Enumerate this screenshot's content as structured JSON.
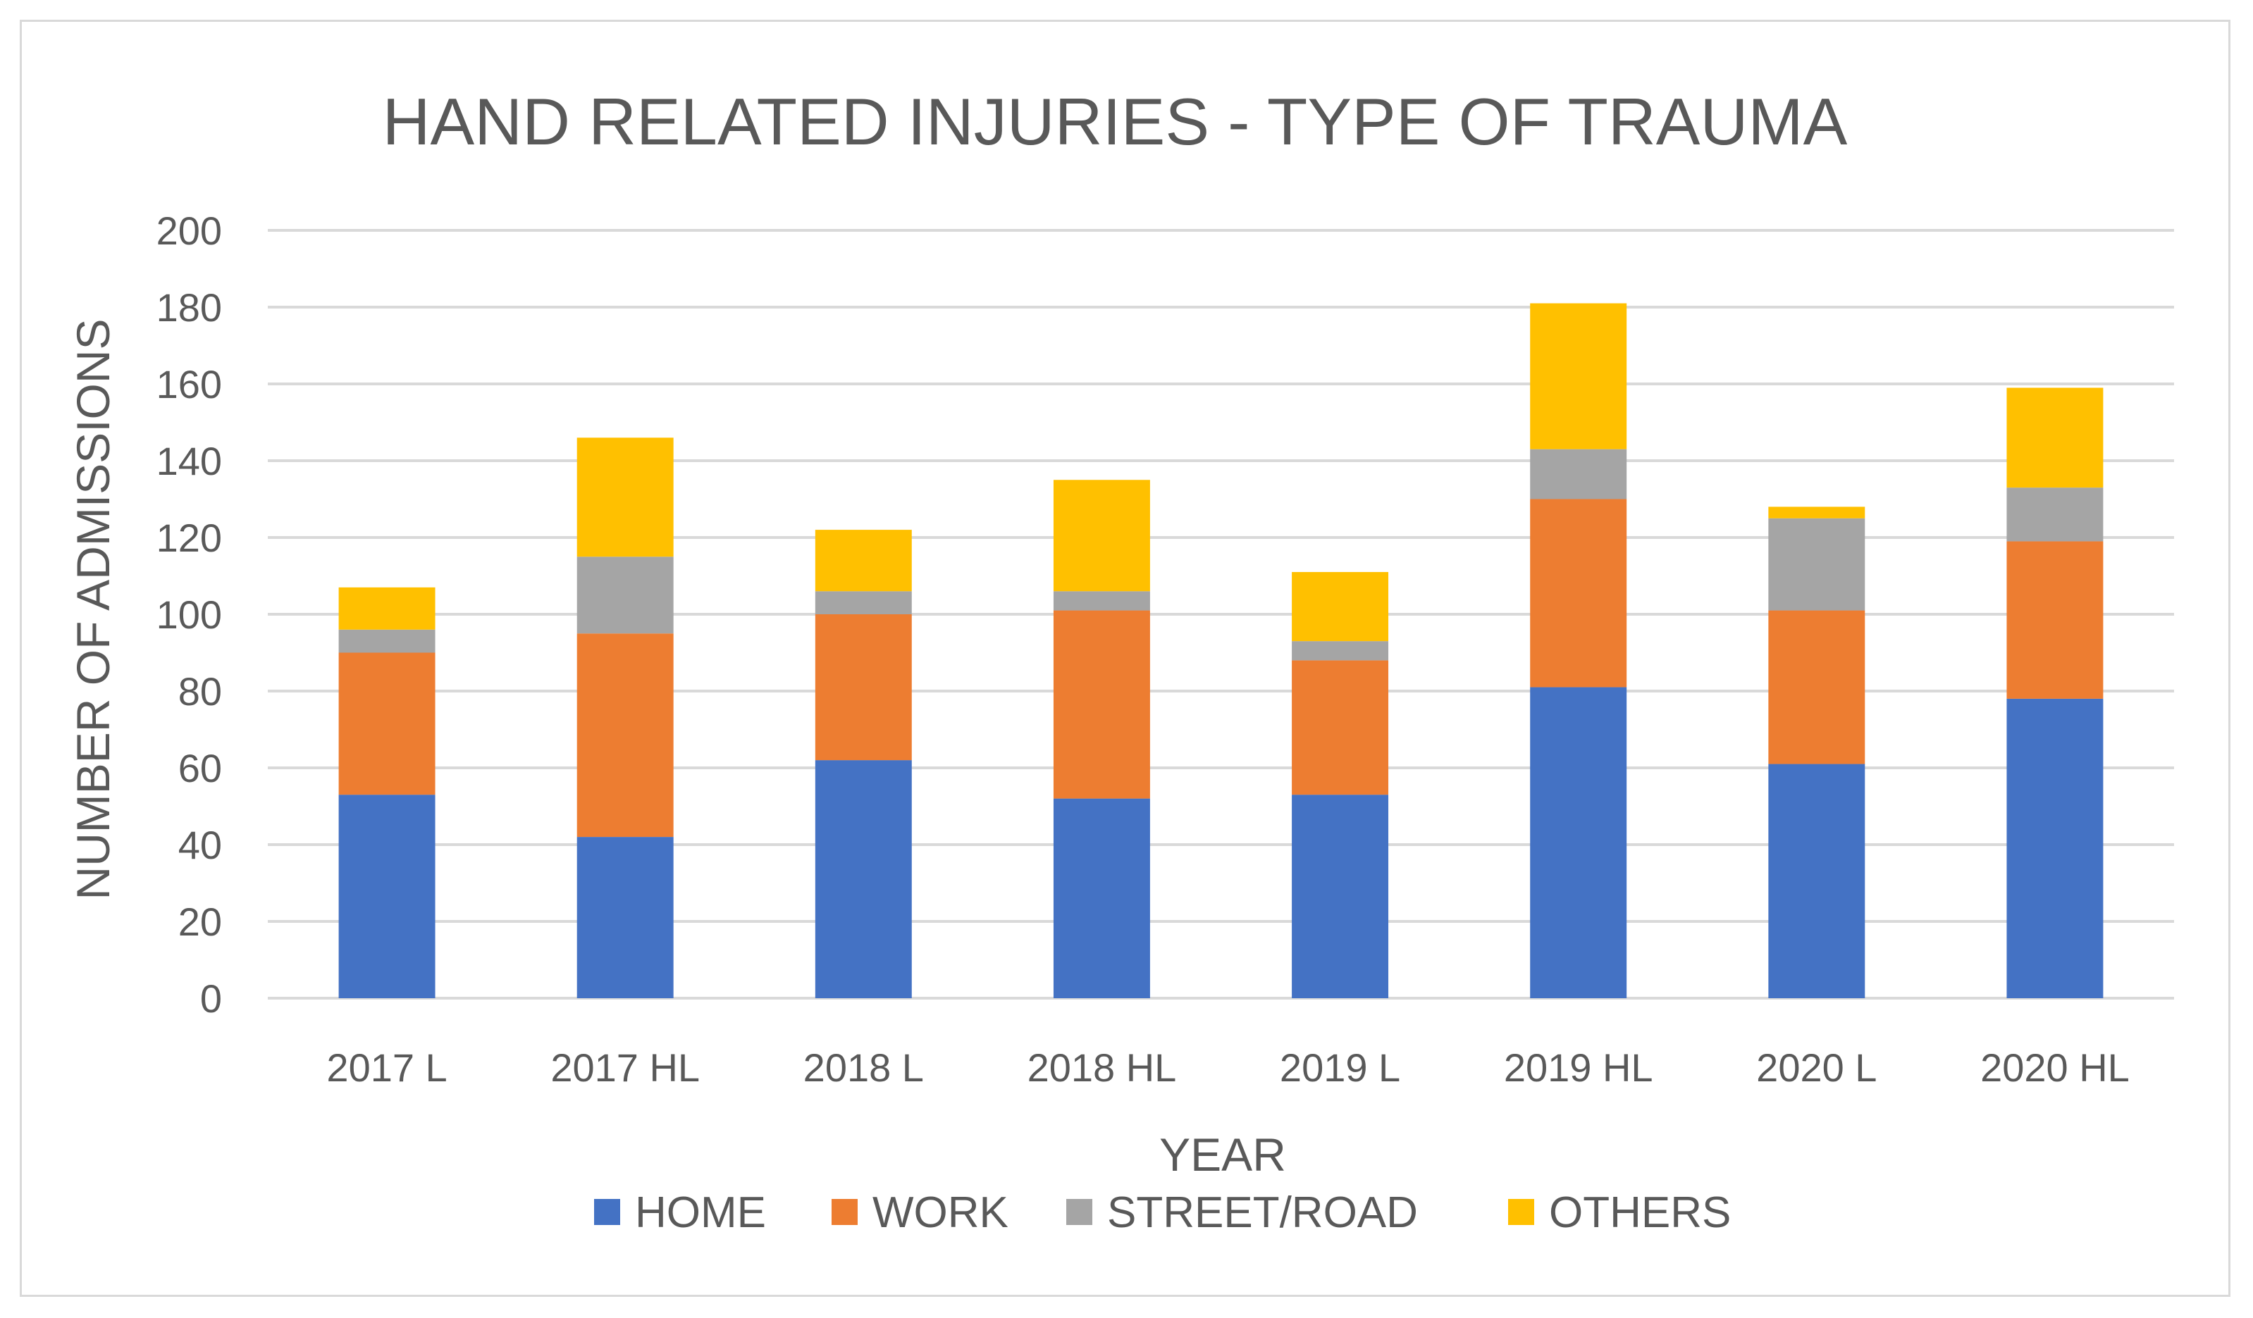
{
  "chart_data": {
    "type": "bar",
    "stacked": true,
    "title": "HAND RELATED INJURIES - TYPE OF TRAUMA",
    "xlabel": "YEAR",
    "ylabel": "NUMBER OF ADMISSIONS",
    "categories": [
      "2017 L",
      "2017 HL",
      "2018 L",
      "2018 HL",
      "2019 L",
      "2019 HL",
      "2020 L",
      "2020 HL"
    ],
    "ylim": [
      0,
      200
    ],
    "yticks": [
      0,
      20,
      40,
      60,
      80,
      100,
      120,
      140,
      160,
      180,
      200
    ],
    "grid": true,
    "legend_position": "bottom",
    "series": [
      {
        "name": "HOME",
        "color": "#4472c4",
        "values": [
          53,
          42,
          62,
          52,
          53,
          81,
          61,
          78
        ]
      },
      {
        "name": "WORK",
        "color": "#ed7d31",
        "values": [
          37,
          53,
          38,
          49,
          35,
          49,
          40,
          41
        ]
      },
      {
        "name": "STREET/ROAD",
        "color": "#a5a5a5",
        "values": [
          6,
          20,
          6,
          5,
          5,
          13,
          24,
          14
        ]
      },
      {
        "name": "OTHERS",
        "color": "#ffc000",
        "values": [
          11,
          31,
          16,
          29,
          18,
          38,
          3,
          26
        ]
      }
    ]
  }
}
